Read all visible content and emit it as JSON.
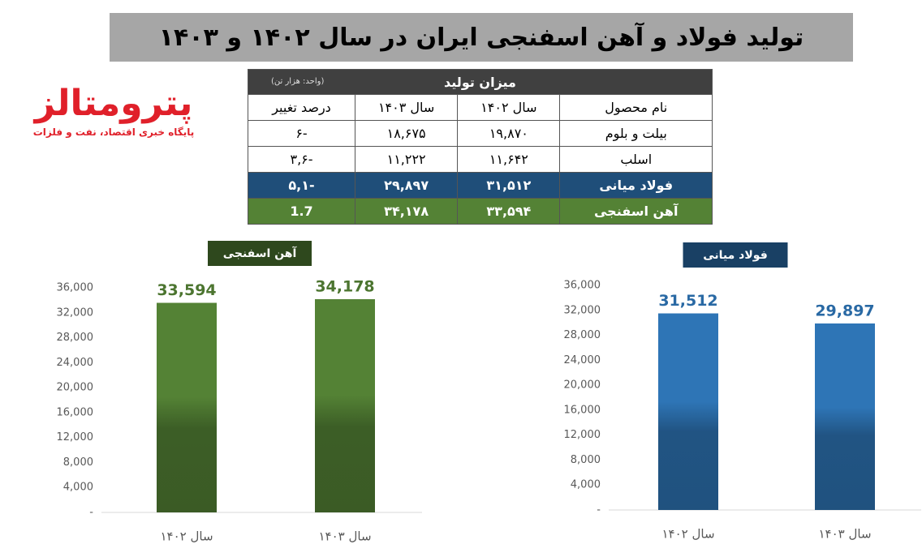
{
  "title": "تولید فولاد و آهن اسفنجی ایران در سال ۱۴۰۲ و ۱۴۰۳",
  "logo": {
    "name": "پترومتالز",
    "tagline": "پایگاه خبری اقتصاد، نفت و فلزات"
  },
  "table": {
    "header": "میزان تولید",
    "unit": "(واحد: هزار تن)",
    "columns": [
      "نام محصول",
      "سال ۱۴۰۲",
      "سال ۱۴۰۳",
      "درصد تغییر"
    ],
    "rows": [
      [
        "بیلت و بلوم",
        "۱۹,۸۷۰",
        "۱۸,۶۷۵",
        "-۶"
      ],
      [
        "اسلب",
        "۱۱,۶۴۲",
        "۱۱,۲۲۲",
        "-۳,۶"
      ],
      [
        "فولاد میانی",
        "۳۱,۵۱۲",
        "۲۹,۸۹۷",
        "-۵,۱"
      ],
      [
        "آهن اسفنجی",
        "۳۳,۵۹۴",
        "۳۴,۱۷۸",
        "1.7"
      ]
    ]
  },
  "chart_data": [
    {
      "type": "bar",
      "title": "آهن اسفنجی",
      "categories": [
        "سال ۱۴۰۲",
        "سال ۱۴۰۳"
      ],
      "values": [
        33594,
        34178
      ],
      "value_labels": [
        "33,594",
        "34,178"
      ],
      "color": "#548235",
      "ylim": [
        0,
        36000
      ],
      "grid": false,
      "yticks": [
        {
          "value": 0,
          "label": "-"
        },
        {
          "value": 4000,
          "label": "4,000"
        },
        {
          "value": 8000,
          "label": "8,000"
        },
        {
          "value": 12000,
          "label": "12,000"
        },
        {
          "value": 16000,
          "label": "16,000"
        },
        {
          "value": 20000,
          "label": "20,000"
        },
        {
          "value": 24000,
          "label": "24,000"
        },
        {
          "value": 28000,
          "label": "28,000"
        },
        {
          "value": 32000,
          "label": "32,000"
        },
        {
          "value": 36000,
          "label": "36,000"
        }
      ]
    },
    {
      "type": "bar",
      "title": "فولاد میانی",
      "categories": [
        "سال ۱۴۰۲",
        "سال ۱۴۰۳"
      ],
      "values": [
        31512,
        29897
      ],
      "value_labels": [
        "31,512",
        "29,897"
      ],
      "color": "#2e75b6",
      "ylim": [
        0,
        36000
      ],
      "grid": false,
      "yticks": [
        {
          "value": 0,
          "label": "-"
        },
        {
          "value": 4000,
          "label": "4,000"
        },
        {
          "value": 8000,
          "label": "8,000"
        },
        {
          "value": 12000,
          "label": "12,000"
        },
        {
          "value": 16000,
          "label": "16,000"
        },
        {
          "value": 20000,
          "label": "20,000"
        },
        {
          "value": 24000,
          "label": "24,000"
        },
        {
          "value": 28000,
          "label": "28,000"
        },
        {
          "value": 32000,
          "label": "32,000"
        },
        {
          "value": 36000,
          "label": "36,000"
        }
      ]
    }
  ]
}
